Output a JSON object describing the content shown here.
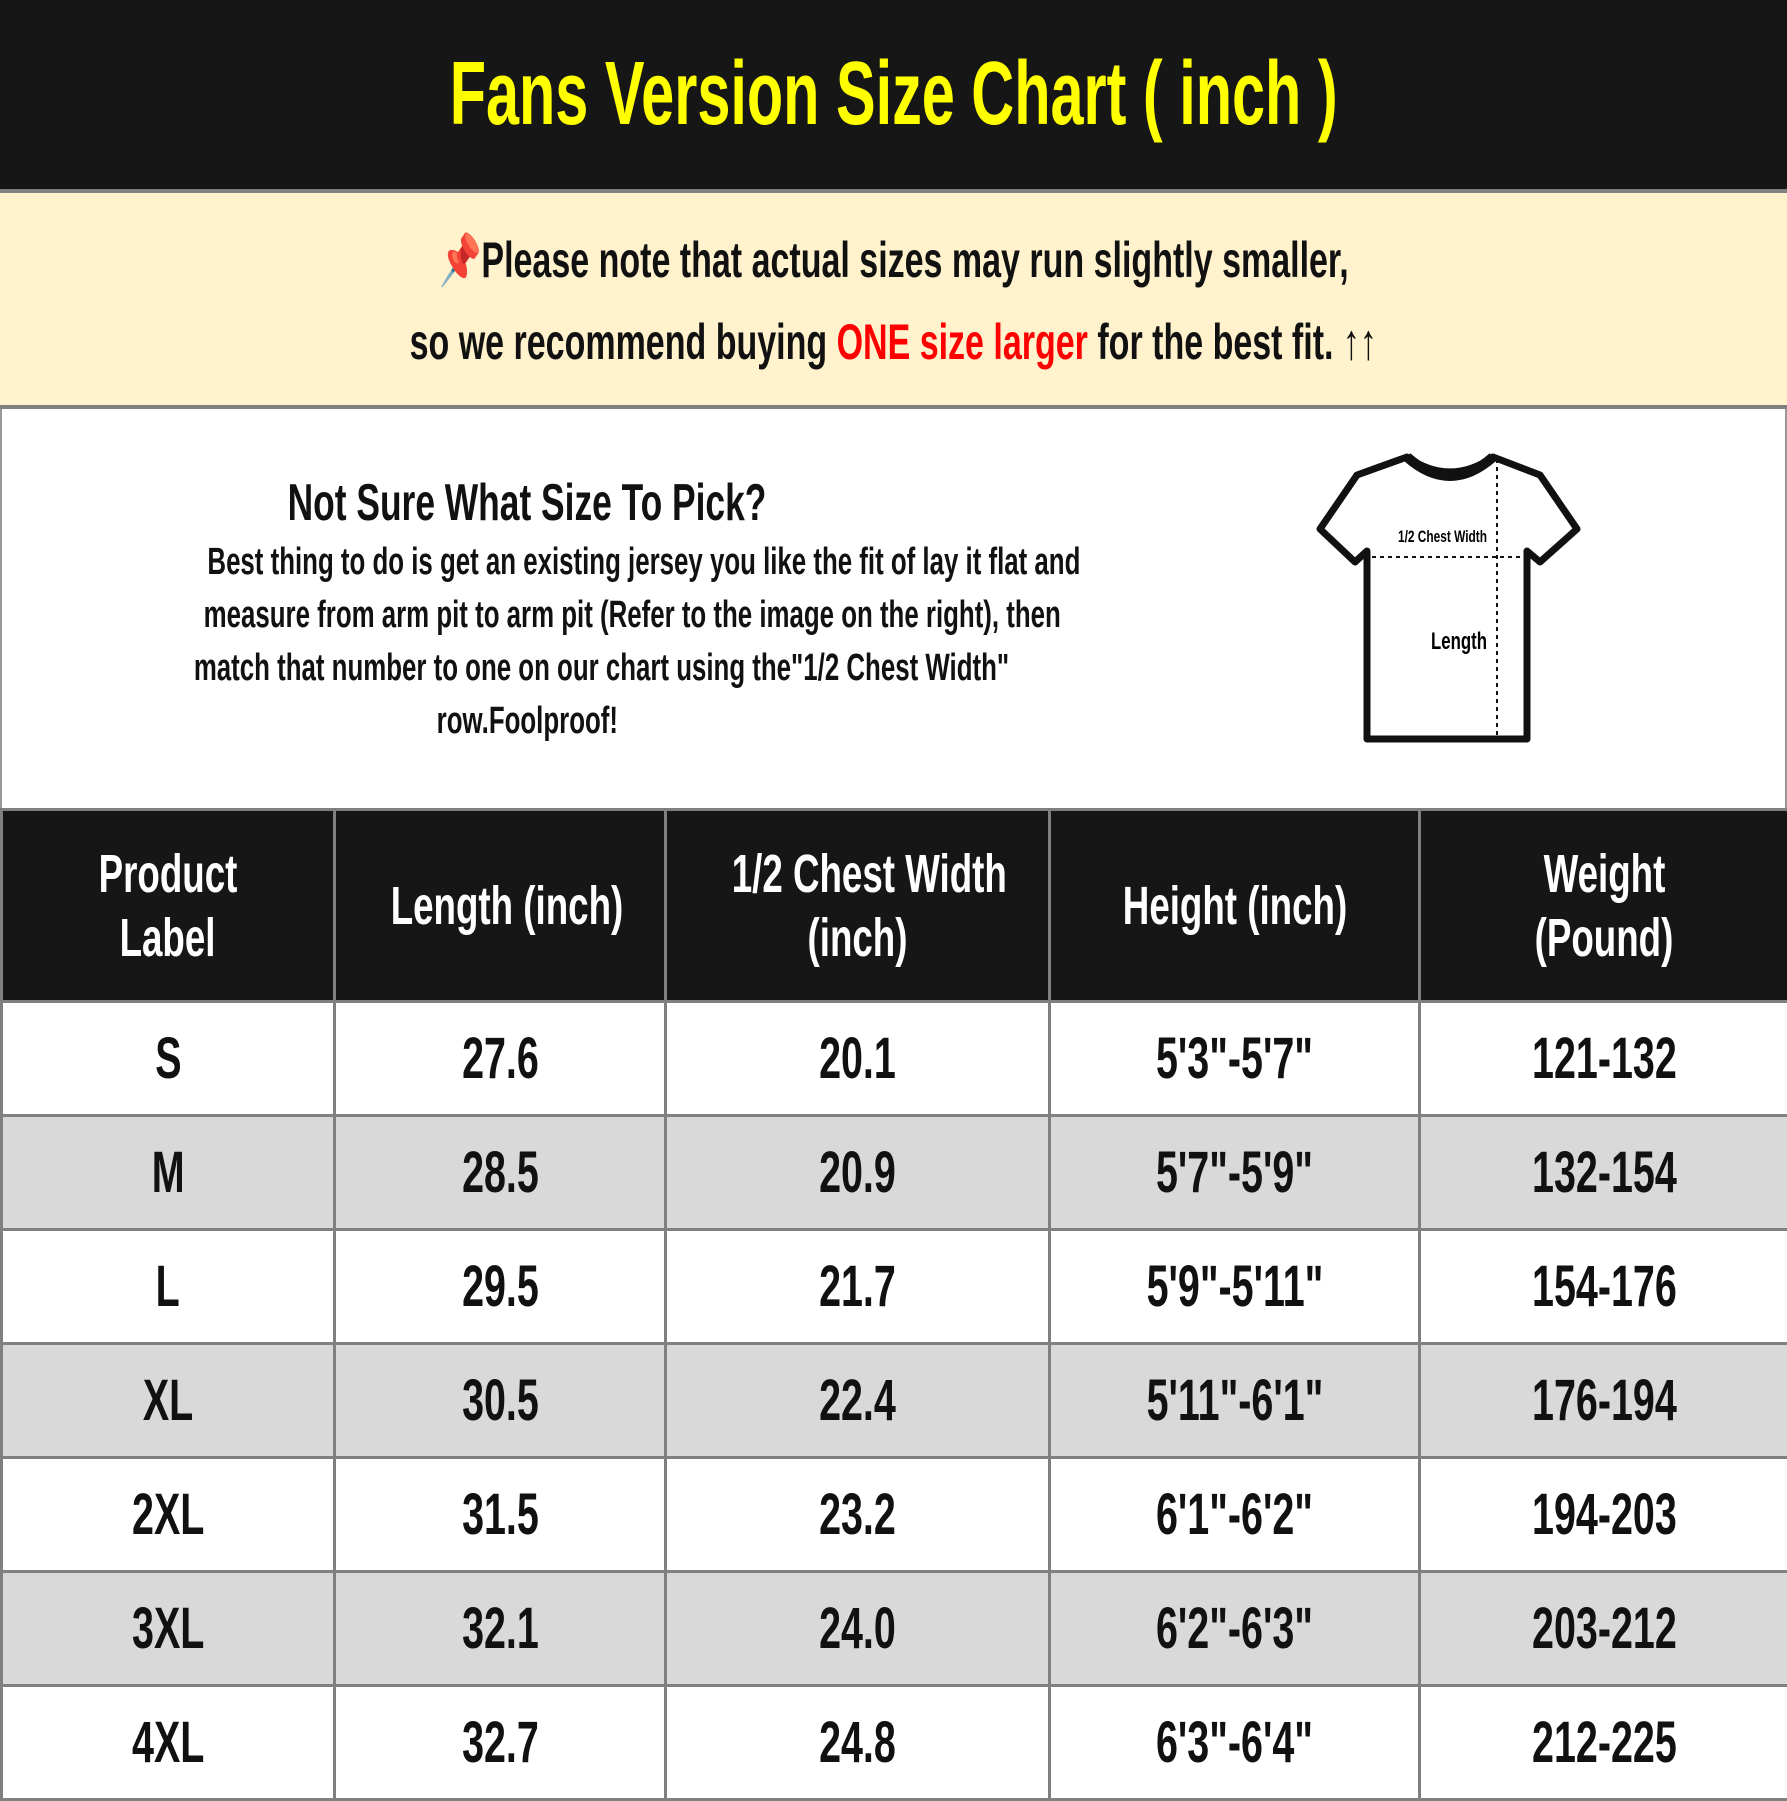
{
  "title": "Fans Version Size Chart ( inch )",
  "note": {
    "icon": "pushpin-icon",
    "line1": "Please note that actual sizes may run slightly smaller,",
    "line2_pre": "so we recommend buying ",
    "line2_highlight": "ONE size larger",
    "line2_post": " for the best fit.",
    "arrows": "↑↑",
    "highlight_color": "#ff0000"
  },
  "info": {
    "heading": "Not Sure What Size To Pick?",
    "lines": [
      "Best thing to do is get an existing jersey you like the fit of lay it flat and",
      "measure from arm pit to arm pit (Refer to the image on the right), then",
      "match that number to one on our chart using the\"1/2 Chest Width\"",
      "row.Foolproof!"
    ],
    "diagram": {
      "chest_label": "1/2 Chest Width",
      "length_label": "Length"
    }
  },
  "table": {
    "headers": [
      [
        "Product",
        "Label"
      ],
      [
        "Length (inch)"
      ],
      [
        "1/2 Chest Width",
        "(inch)"
      ],
      [
        "Height (inch)"
      ],
      [
        "Weight",
        "(Pound)"
      ]
    ],
    "rows": [
      [
        "S",
        "27.6",
        "20.1",
        "5'3\"-5'7\"",
        "121-132"
      ],
      [
        "M",
        "28.5",
        "20.9",
        "5'7\"-5'9\"",
        "132-154"
      ],
      [
        "L",
        "29.5",
        "21.7",
        "5'9\"-5'11\"",
        "154-176"
      ],
      [
        "XL",
        "30.5",
        "22.4",
        "5'11\"-6'1\"",
        "176-194"
      ],
      [
        "2XL",
        "31.5",
        "23.2",
        "6'1\"-6'2\"",
        "194-203"
      ],
      [
        "3XL",
        "32.1",
        "24.0",
        "6'2\"-6'3\"",
        "203-212"
      ],
      [
        "4XL",
        "32.7",
        "24.8",
        "6'3\"-6'4\"",
        "212-225"
      ]
    ]
  },
  "colors": {
    "title_bg": "#161616",
    "title_text": "#ffff00",
    "note_bg": "#fff2cc",
    "alt_row": "#d9d9d9"
  }
}
